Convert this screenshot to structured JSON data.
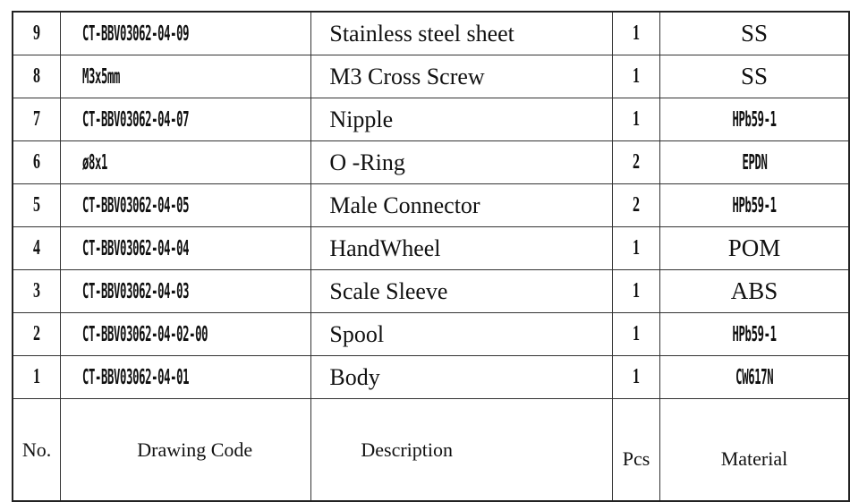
{
  "rows": [
    {
      "no": "9",
      "code": "CT-BBV03062-04-09",
      "description": "Stainless steel sheet",
      "pcs": "1",
      "material": "SS",
      "material_style": "serif"
    },
    {
      "no": "8",
      "code": "M3x5mm",
      "description": "M3 Cross Screw",
      "pcs": "1",
      "material": "SS",
      "material_style": "serif"
    },
    {
      "no": "7",
      "code": "CT-BBV03062-04-07",
      "description": "Nipple",
      "pcs": "1",
      "material": "HPb59-1",
      "material_style": "cond"
    },
    {
      "no": "6",
      "code": "ø8x1",
      "description": "O -Ring",
      "pcs": "2",
      "material": "EPDN",
      "material_style": "cond"
    },
    {
      "no": "5",
      "code": "CT-BBV03062-04-05",
      "description": "Male Connector",
      "pcs": "2",
      "material": "HPb59-1",
      "material_style": "cond"
    },
    {
      "no": "4",
      "code": "CT-BBV03062-04-04",
      "description": "HandWheel",
      "pcs": "1",
      "material": "POM",
      "material_style": "serif"
    },
    {
      "no": "3",
      "code": "CT-BBV03062-04-03",
      "description": "Scale Sleeve",
      "pcs": "1",
      "material": "ABS",
      "material_style": "serif"
    },
    {
      "no": "2",
      "code": "CT-BBV03062-04-02-00",
      "description": "Spool",
      "pcs": "1",
      "material": "HPb59-1",
      "material_style": "cond"
    },
    {
      "no": "1",
      "code": "CT-BBV03062-04-01",
      "description": "Body",
      "pcs": "1",
      "material": "CW617N",
      "material_style": "cond"
    }
  ],
  "header": {
    "no": "No.",
    "code": "Drawing  Code",
    "description": "Description",
    "pcs": "Pcs",
    "material": "Material"
  }
}
